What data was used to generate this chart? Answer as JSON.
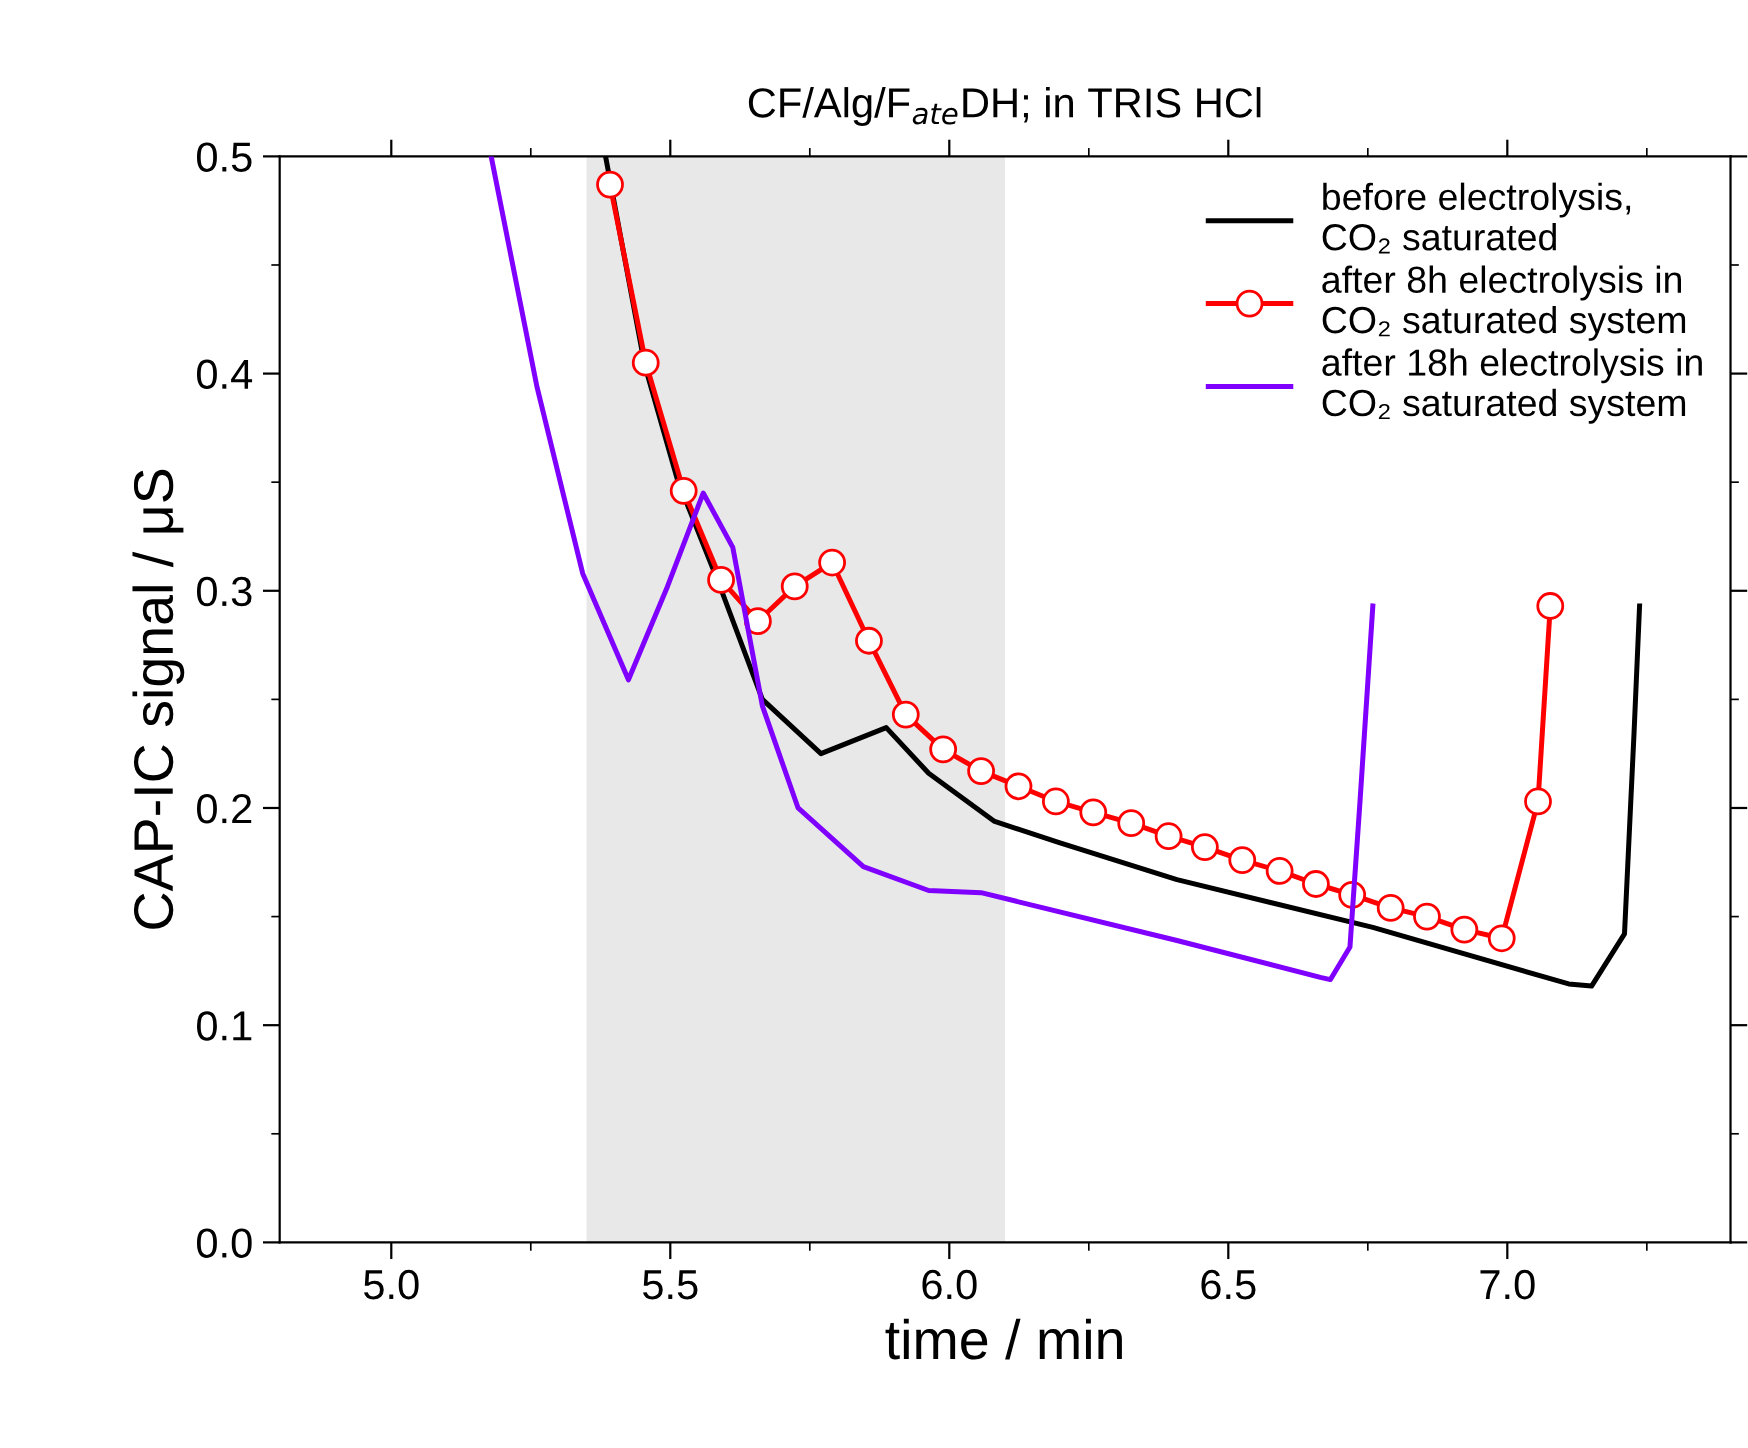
{
  "chart_data": {
    "type": "line",
    "title": "CF/Alg/F$_{ate}$DH; in TRIS HCl",
    "xlabel": "time / min",
    "ylabel": "CAP-IC signal / μS",
    "xlim": [
      4.8,
      7.4
    ],
    "ylim": [
      0.0,
      0.5
    ],
    "xticks": [
      {
        "value": 5.0,
        "label": "5.0"
      },
      5.5,
      {
        "value": 6.0,
        "label": "6.0"
      },
      6.5,
      {
        "value": 7.0,
        "label": "7.0"
      }
    ],
    "yticks": [
      {
        "value": 0.0,
        "label": "0.0"
      },
      0.1,
      0.2,
      0.3,
      0.4,
      0.5
    ],
    "grid": false,
    "legend": "top right",
    "bands": [
      {
        "axis": "x",
        "from": 5.35,
        "to": 6.1,
        "color": "#e8e8e8"
      }
    ],
    "series": [
      {
        "name": "before electrolysis,\nCO₂ saturated",
        "color": "#000000",
        "marker": "none",
        "x": [
          5.384,
          5.454,
          5.513,
          5.589,
          5.665,
          5.77,
          5.887,
          5.963,
          6.08,
          6.197,
          6.408,
          6.759,
          7.11,
          7.151,
          7.21,
          7.227,
          7.237
        ],
        "values": [
          0.5,
          0.404,
          0.351,
          0.302,
          0.25,
          0.225,
          0.237,
          0.216,
          0.194,
          0.184,
          0.167,
          0.145,
          0.119,
          0.118,
          0.142,
          0.234,
          0.293
        ]
      },
      {
        "name": "after 8h electrolysis in\nCO₂ saturated system",
        "color": "#ff0000",
        "marker": "circle",
        "x": [
          5.392,
          5.456,
          5.524,
          5.591,
          5.657,
          5.723,
          5.79,
          5.856,
          5.922,
          5.989,
          6.057,
          6.124,
          6.191,
          6.258,
          6.326,
          6.393,
          6.458,
          6.525,
          6.592,
          6.657,
          6.722,
          6.791,
          6.856,
          6.923,
          6.99,
          7.055,
          7.077
        ],
        "values": [
          0.487,
          0.405,
          0.346,
          0.305,
          0.286,
          0.302,
          0.313,
          0.277,
          0.243,
          0.227,
          0.217,
          0.21,
          0.203,
          0.198,
          0.193,
          0.187,
          0.182,
          0.176,
          0.171,
          0.165,
          0.16,
          0.154,
          0.15,
          0.144,
          0.14,
          0.203,
          0.293
        ]
      },
      {
        "name": "after 18h electrolysis in\nCO₂ saturated system",
        "color": "#7f00ff",
        "marker": "none",
        "x": [
          5.179,
          5.261,
          5.343,
          5.425,
          5.495,
          5.559,
          5.612,
          5.665,
          5.729,
          5.846,
          5.963,
          6.057,
          6.408,
          6.665,
          6.683,
          6.718,
          6.736,
          6.759
        ],
        "values": [
          0.5,
          0.394,
          0.308,
          0.259,
          0.302,
          0.345,
          0.32,
          0.247,
          0.2,
          0.173,
          0.162,
          0.161,
          0.139,
          0.122,
          0.121,
          0.136,
          0.203,
          0.293
        ]
      }
    ]
  }
}
